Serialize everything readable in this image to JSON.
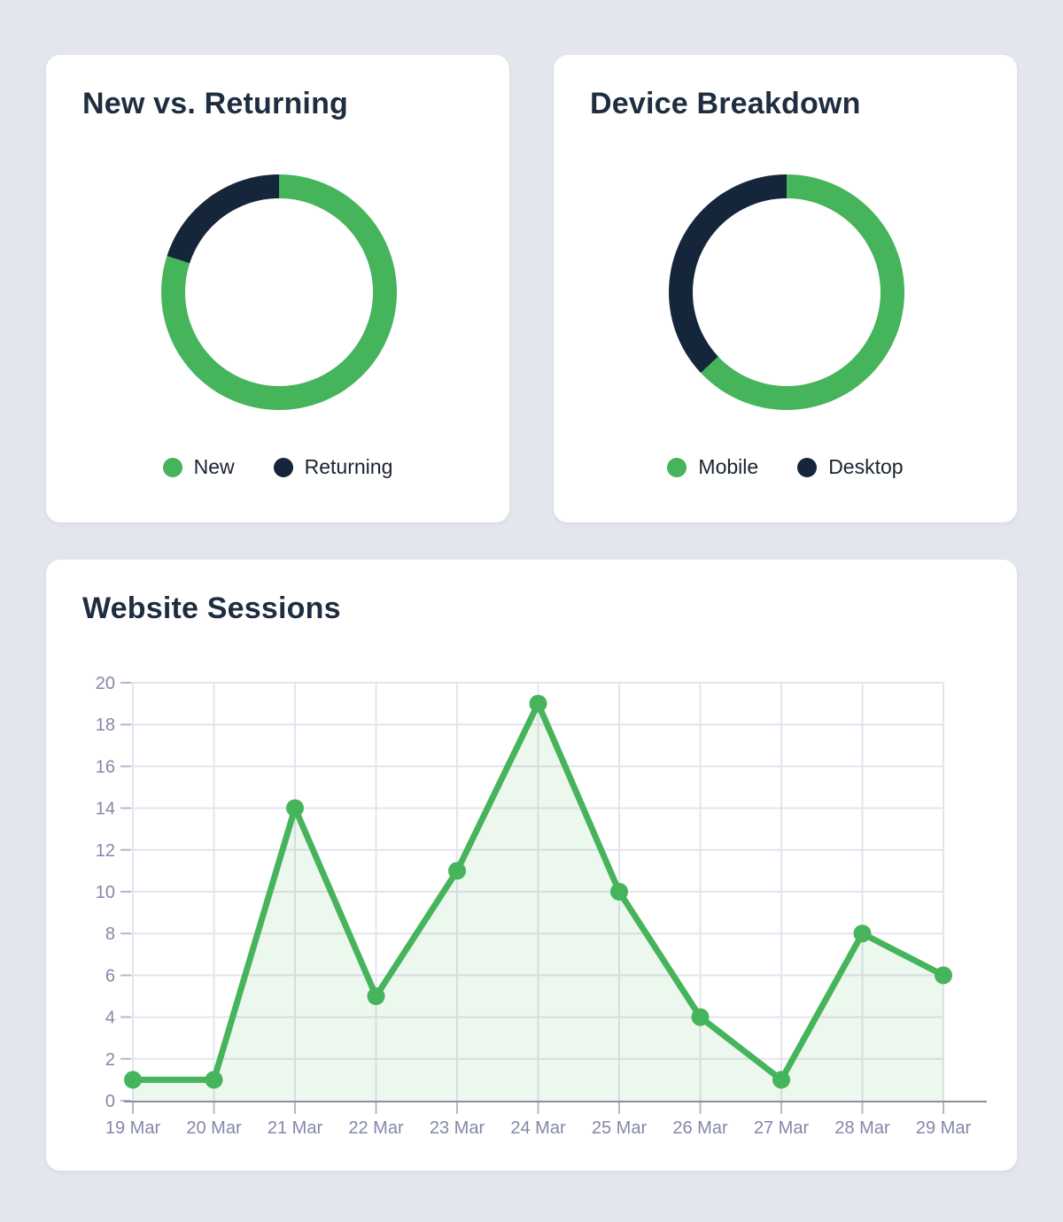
{
  "page": {
    "background_color": "#e4e6ee",
    "card_background": "#ffffff"
  },
  "colors": {
    "accent_green": "#46b45b",
    "accent_navy": "#16263a",
    "title_text": "#1e2d40",
    "legend_text": "#1a2430"
  },
  "chart_style": {
    "grid_color": "#e4e4ef",
    "tick_color": "#b7b7cb",
    "axis_line_color": "#8f8f9c",
    "axis_label_color": "#8487a9"
  },
  "chart_data": [
    {
      "id": "new-vs-returning",
      "type": "pie",
      "donut": true,
      "title": "New vs. Returning",
      "legend_position": "bottom",
      "series": [
        {
          "name": "New",
          "value": 80,
          "color": "#46b45b"
        },
        {
          "name": "Returning",
          "value": 20,
          "color": "#16263a"
        }
      ]
    },
    {
      "id": "device-breakdown",
      "type": "pie",
      "donut": true,
      "title": "Device Breakdown",
      "legend_position": "bottom",
      "series": [
        {
          "name": "Mobile",
          "value": 63,
          "color": "#46b45b"
        },
        {
          "name": "Desktop",
          "value": 37,
          "color": "#16263a"
        }
      ]
    },
    {
      "id": "website-sessions",
      "type": "line",
      "title": "Website Sessions",
      "x": [
        "19 Mar",
        "20 Mar",
        "21 Mar",
        "22 Mar",
        "23 Mar",
        "24 Mar",
        "25 Mar",
        "26 Mar",
        "27 Mar",
        "28 Mar",
        "29 Mar"
      ],
      "values": [
        1,
        1,
        14,
        5,
        11,
        19,
        10,
        4,
        1,
        8,
        6
      ],
      "xlabel": "",
      "ylabel": "",
      "ylim": [
        0,
        20
      ],
      "ytick_step": 2,
      "grid": true,
      "legend": false,
      "markers": true,
      "line_color": "#46b45b",
      "fill_color": "rgba(70,180,91,0.10)"
    }
  ]
}
